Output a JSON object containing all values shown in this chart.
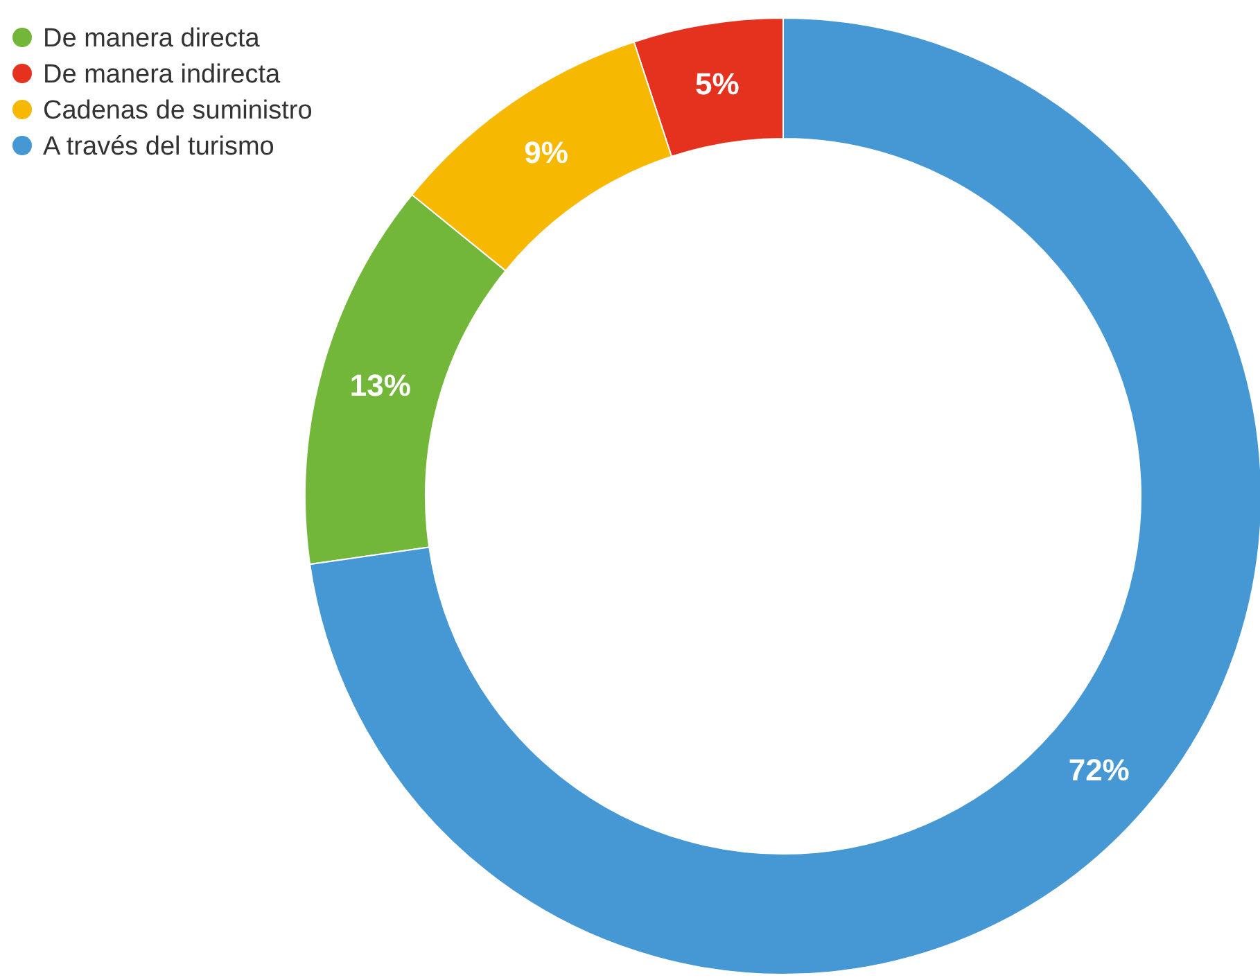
{
  "chart_data": {
    "type": "donut",
    "categories": [
      "De manera directa",
      "De manera indirecta",
      "Cadenas de suministro",
      "A través del turismo"
    ],
    "values": [
      13,
      5,
      9,
      72
    ],
    "colors": [
      "#72b73a",
      "#e5321f",
      "#f6b800",
      "#4598d4"
    ],
    "value_labels": [
      "13%",
      "5%",
      "9%",
      "72%"
    ],
    "legend": "top left"
  }
}
